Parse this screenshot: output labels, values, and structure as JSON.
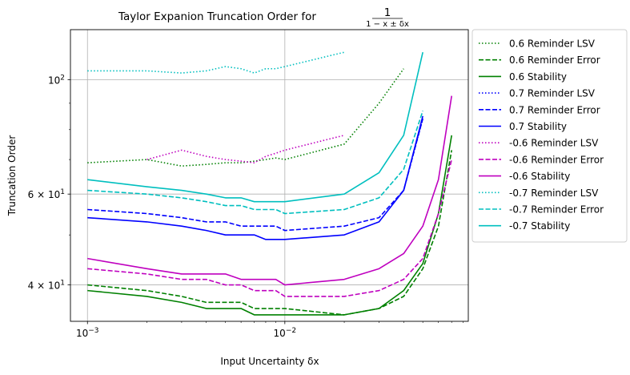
{
  "chart_data": {
    "type": "line",
    "title": "Taylor Expanion Truncation Order for",
    "title_fraction": {
      "numerator": "1",
      "denominator": "1 − x ± δx"
    },
    "xlabel": "Input Uncertainty δx",
    "ylabel": "Truncation Order",
    "x_scale": "log",
    "y_scale": "log",
    "xlim": [
      0.00082,
      0.085
    ],
    "ylim": [
      34,
      125
    ],
    "x_ticks": [
      {
        "value": 0.001,
        "base": "10",
        "exp": "−3"
      },
      {
        "value": 0.01,
        "base": "10",
        "exp": "−2"
      }
    ],
    "y_ticks": [
      {
        "value": 40,
        "mant": "4",
        "base": "10",
        "exp": "1"
      },
      {
        "value": 60,
        "mant": "6",
        "base": "10",
        "exp": "1"
      },
      {
        "value": 100,
        "mant": "",
        "base": "10",
        "exp": "2"
      }
    ],
    "grid": true,
    "legend_position": "outside-right",
    "series": [
      {
        "name": "0.6 Reminder LSV",
        "color": "#008000",
        "dash": "dotted",
        "x": [
          0.001,
          0.002,
          0.003,
          0.004,
          0.005,
          0.006,
          0.007,
          0.008,
          0.009,
          0.01,
          0.02,
          0.03,
          0.04
        ],
        "y": [
          69,
          70,
          68,
          68.5,
          69,
          69,
          69.5,
          70,
          70.5,
          70,
          75,
          90,
          105
        ]
      },
      {
        "name": "0.6 Reminder Error",
        "color": "#008000",
        "dash": "dashed",
        "x": [
          0.001,
          0.002,
          0.003,
          0.004,
          0.005,
          0.006,
          0.007,
          0.008,
          0.009,
          0.01,
          0.02,
          0.03,
          0.04,
          0.05,
          0.06,
          0.07
        ],
        "y": [
          40,
          39,
          38,
          37,
          37,
          37,
          36,
          36,
          36,
          36,
          35,
          36,
          38,
          43,
          52,
          73
        ]
      },
      {
        "name": "0.6 Stability",
        "color": "#008000",
        "dash": "solid",
        "x": [
          0.001,
          0.002,
          0.003,
          0.004,
          0.005,
          0.006,
          0.007,
          0.008,
          0.009,
          0.01,
          0.02,
          0.03,
          0.04,
          0.05,
          0.06,
          0.07
        ],
        "y": [
          39,
          38,
          37,
          36,
          36,
          36,
          35,
          35,
          35,
          35,
          35,
          36,
          39,
          44,
          55,
          78
        ]
      },
      {
        "name": "0.7 Reminder LSV",
        "color": "#0000ff",
        "dash": "dotted",
        "x": [
          0.04,
          0.05
        ],
        "y": [
          61,
          84
        ]
      },
      {
        "name": "0.7 Reminder Error",
        "color": "#0000ff",
        "dash": "dashed",
        "x": [
          0.001,
          0.002,
          0.003,
          0.004,
          0.005,
          0.006,
          0.007,
          0.008,
          0.009,
          0.01,
          0.02,
          0.03,
          0.04,
          0.05
        ],
        "y": [
          56,
          55,
          54,
          53,
          53,
          52,
          52,
          52,
          52,
          51,
          52,
          54,
          61,
          84
        ]
      },
      {
        "name": "0.7 Stability",
        "color": "#0000ff",
        "dash": "solid",
        "x": [
          0.001,
          0.002,
          0.003,
          0.004,
          0.005,
          0.006,
          0.007,
          0.008,
          0.009,
          0.01,
          0.02,
          0.03,
          0.04,
          0.05
        ],
        "y": [
          54,
          53,
          52,
          51,
          50,
          50,
          50,
          49,
          49,
          49,
          50,
          53,
          61,
          85
        ]
      },
      {
        "name": "-0.6 Reminder LSV",
        "color": "#bf00bf",
        "dash": "dotted",
        "x": [
          0.002,
          0.003,
          0.004,
          0.005,
          0.006,
          0.007,
          0.008,
          0.009,
          0.01,
          0.02
        ],
        "y": [
          70,
          73,
          71,
          70,
          69.5,
          69,
          71,
          72,
          73,
          78
        ]
      },
      {
        "name": "-0.6 Reminder Error",
        "color": "#bf00bf",
        "dash": "dashed",
        "x": [
          0.001,
          0.002,
          0.003,
          0.004,
          0.005,
          0.006,
          0.007,
          0.008,
          0.009,
          0.01,
          0.02,
          0.03,
          0.04,
          0.05,
          0.06,
          0.07
        ],
        "y": [
          43,
          42,
          41,
          41,
          40,
          40,
          39,
          39,
          39,
          38,
          38,
          39,
          41,
          45,
          55,
          70
        ]
      },
      {
        "name": "-0.6 Stability",
        "color": "#bf00bf",
        "dash": "solid",
        "x": [
          0.001,
          0.002,
          0.003,
          0.004,
          0.005,
          0.006,
          0.007,
          0.008,
          0.009,
          0.01,
          0.02,
          0.03,
          0.04,
          0.05,
          0.06,
          0.07
        ],
        "y": [
          45,
          43,
          42,
          42,
          42,
          41,
          41,
          41,
          41,
          40,
          41,
          43,
          46,
          52,
          64,
          93
        ]
      },
      {
        "name": "-0.7 Reminder LSV",
        "color": "#00bfbf",
        "dash": "dotted",
        "x": [
          0.001,
          0.002,
          0.003,
          0.004,
          0.005,
          0.006,
          0.007,
          0.008,
          0.009,
          0.01,
          0.02
        ],
        "y": [
          104,
          104,
          103,
          104,
          106,
          105,
          103,
          105,
          105,
          106,
          113
        ]
      },
      {
        "name": "-0.7 Reminder Error",
        "color": "#00bfbf",
        "dash": "dashed",
        "x": [
          0.001,
          0.002,
          0.003,
          0.004,
          0.005,
          0.006,
          0.007,
          0.008,
          0.009,
          0.01,
          0.02,
          0.03,
          0.04,
          0.05
        ],
        "y": [
          61,
          60,
          59,
          58,
          57,
          57,
          56,
          56,
          56,
          55,
          56,
          59,
          67,
          87
        ]
      },
      {
        "name": "-0.7 Stability",
        "color": "#00bfbf",
        "dash": "solid",
        "x": [
          0.001,
          0.002,
          0.003,
          0.004,
          0.005,
          0.006,
          0.007,
          0.008,
          0.009,
          0.01,
          0.02,
          0.03,
          0.04,
          0.05
        ],
        "y": [
          64,
          62,
          61,
          60,
          59,
          59,
          58,
          58,
          58,
          58,
          60,
          66,
          78,
          113
        ]
      }
    ]
  }
}
